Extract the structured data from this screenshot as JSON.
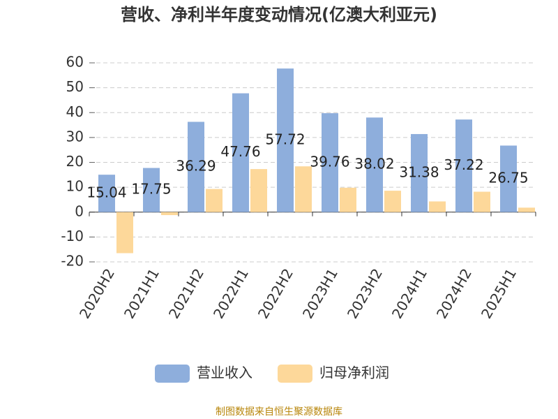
{
  "chart_data": {
    "type": "bar",
    "title": "营收、净利半年度变动情况(亿澳大利亚元)",
    "categories": [
      "2020H2",
      "2021H1",
      "2021H2",
      "2022H1",
      "2022H2",
      "2023H1",
      "2023H2",
      "2024H1",
      "2024H2",
      "2025H1"
    ],
    "series": [
      {
        "name": "营业收入",
        "color": "#8eaedc",
        "values": [
          15.04,
          17.75,
          36.29,
          47.76,
          57.72,
          39.76,
          38.02,
          31.38,
          37.22,
          26.75
        ],
        "show_labels": true
      },
      {
        "name": "归母净利润",
        "color": "#fdd89a",
        "values": [
          -16.5,
          -1.2,
          9.3,
          17.3,
          18.4,
          9.8,
          8.6,
          4.3,
          8.2,
          1.8
        ],
        "show_labels": false
      }
    ],
    "ylim": [
      -20,
      60
    ],
    "yticks": [
      -20,
      -10,
      0,
      10,
      20,
      30,
      40,
      50,
      60
    ],
    "grid": true,
    "source": "制图数据来自恒生聚源数据库"
  }
}
